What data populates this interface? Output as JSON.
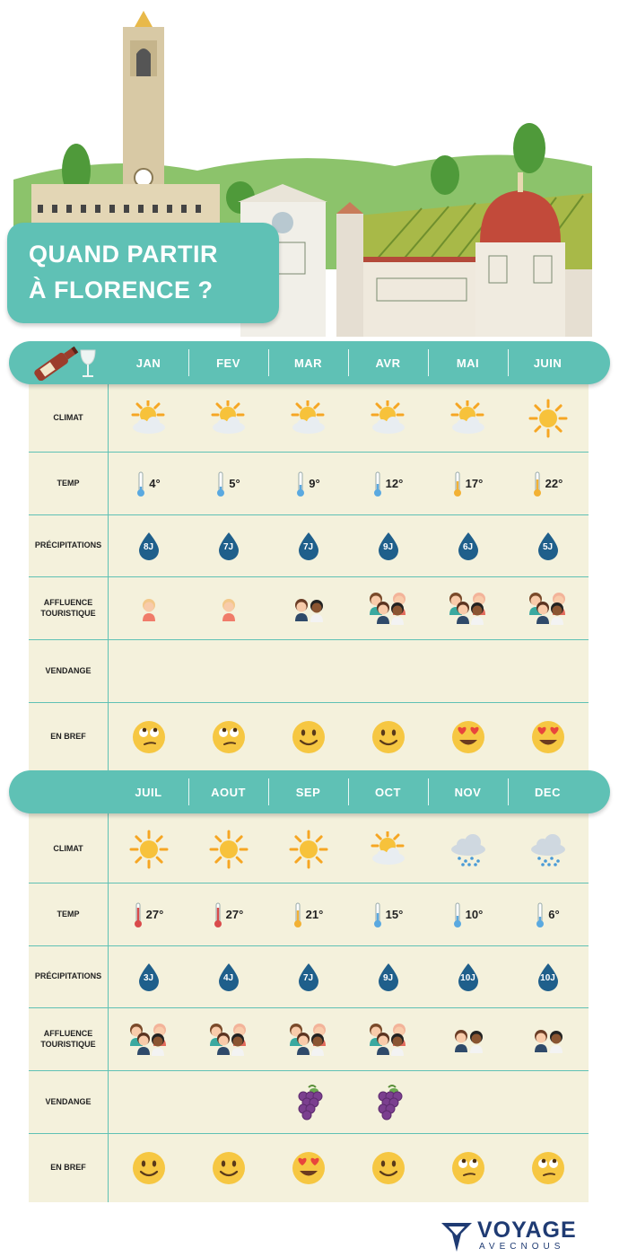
{
  "title": {
    "line1": "QUAND PARTIR",
    "line2": "À FLORENCE ?"
  },
  "months_top": [
    "JAN",
    "FEV",
    "MAR",
    "AVR",
    "MAI",
    "JUIN"
  ],
  "months_bottom": [
    "JUIL",
    "AOUT",
    "SEP",
    "OCT",
    "NOV",
    "DEC"
  ],
  "row_labels": {
    "climat": "CLIMAT",
    "temp": "TEMP",
    "precip": "PRÉCIPITATIONS",
    "affluence": "AFFLUENCE TOURISTIQUE",
    "vendange": "VENDANGE",
    "bref": "EN BREF"
  },
  "top": {
    "climat": [
      "sun-cloud-icon",
      "sun-cloud-icon",
      "sun-cloud-icon",
      "sun-cloud-icon",
      "sun-cloud-icon",
      "sun-icon"
    ],
    "temp": [
      "4°",
      "5°",
      "9°",
      "12°",
      "17°",
      "22°"
    ],
    "temp_level": [
      0.15,
      0.18,
      0.28,
      0.35,
      0.5,
      0.62
    ],
    "precip": [
      "8J",
      "7J",
      "7J",
      "9J",
      "6J",
      "5J"
    ],
    "affluence": [
      1,
      1,
      2,
      4,
      4,
      4
    ],
    "vendange": [
      false,
      false,
      false,
      false,
      false,
      false
    ],
    "bref": [
      "eyeroll",
      "eyeroll",
      "smile",
      "smile",
      "love",
      "love"
    ]
  },
  "bottom": {
    "climat": [
      "sun-icon",
      "sun-icon",
      "sun-icon",
      "sun-cloud-icon",
      "rain-cloud-icon",
      "rain-cloud-icon"
    ],
    "temp": [
      "27°",
      "27°",
      "21°",
      "15°",
      "10°",
      "6°"
    ],
    "temp_level": [
      0.8,
      0.8,
      0.6,
      0.45,
      0.3,
      0.2
    ],
    "precip": [
      "3J",
      "4J",
      "7J",
      "9J",
      "10J",
      "10J"
    ],
    "affluence": [
      4,
      4,
      4,
      4,
      2,
      2
    ],
    "vendange": [
      false,
      false,
      true,
      true,
      false,
      false
    ],
    "bref": [
      "smile",
      "smile",
      "love",
      "smile",
      "eyeroll",
      "eyeroll"
    ]
  },
  "logo": {
    "main": "VOYAGE",
    "sub": "AVECNOUS"
  },
  "colors": {
    "teal": "#5fc1b5",
    "panel": "#f4f1dc",
    "drop": "#1f5f8b",
    "emoji": "#f6c742"
  }
}
